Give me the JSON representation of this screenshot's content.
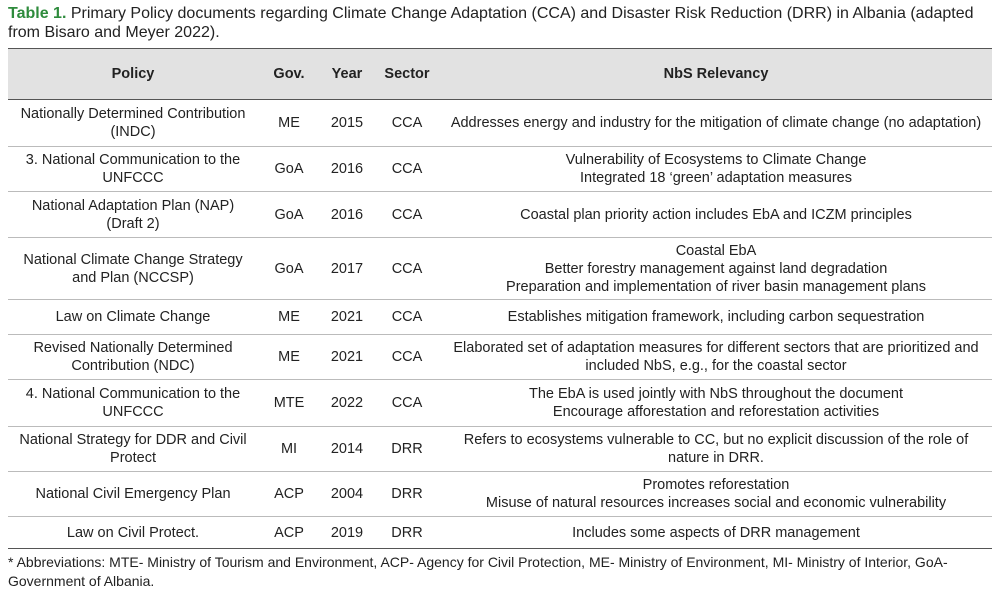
{
  "caption": {
    "label": "Table 1.",
    "text": "Primary Policy documents regarding Climate Change Adaptation (CCA) and Disaster Risk Reduction (DRR) in Albania (adapted from Bisaro and Meyer 2022)."
  },
  "table": {
    "headers": [
      "Policy",
      "Gov.",
      "Year",
      "Sector",
      "NbS Relevancy"
    ],
    "rows": [
      [
        "Nationally Determined Contribution (INDC)",
        "ME",
        "2015",
        "CCA",
        [
          "Addresses energy and industry for the mitigation of climate change (no adaptation)"
        ]
      ],
      [
        "3. National Communication to the UNFCCC",
        "GoA",
        "2016",
        "CCA",
        [
          "Vulnerability of Ecosystems to Climate Change",
          "Integrated 18 ‘green’ adaptation measures"
        ]
      ],
      [
        "National Adaptation Plan (NAP) (Draft 2)",
        "GoA",
        "2016",
        "CCA",
        [
          "Coastal plan priority action includes EbA and ICZM principles"
        ]
      ],
      [
        "National Climate Change Strategy and Plan (NCCSP)",
        "GoA",
        "2017",
        "CCA",
        [
          "Coastal EbA",
          "Better forestry management against land degradation",
          "Preparation and implementation of river basin management plans"
        ]
      ],
      [
        "Law on Climate Change",
        "ME",
        "2021",
        "CCA",
        [
          "Establishes mitigation framework, including carbon sequestration"
        ]
      ],
      [
        "Revised Nationally Determined Contribution (NDC)",
        "ME",
        "2021",
        "CCA",
        [
          "Elaborated set of adaptation measures for different sectors that are prioritized and included NbS, e.g., for the coastal sector"
        ]
      ],
      [
        "4. National Communication to the UNFCCC",
        "MTE",
        "2022",
        "CCA",
        [
          "The EbA is used jointly with NbS throughout the document",
          "Encourage afforestation and reforestation activities"
        ]
      ],
      [
        "National Strategy for DDR and Civil Protect",
        "MI",
        "2014",
        "DRR",
        [
          "Refers to ecosystems vulnerable to CC, but no explicit discussion of the role of nature in DRR."
        ]
      ],
      [
        "National Civil Emergency Plan",
        "ACP",
        "2004",
        "DRR",
        [
          "Promotes reforestation",
          "Misuse of natural resources increases social and economic vulnerability"
        ]
      ],
      [
        "Law on Civil Protect.",
        "ACP",
        "2019",
        "DRR",
        [
          "Includes some aspects of DRR management"
        ]
      ]
    ]
  },
  "footnote": "* Abbreviations: MTE- Ministry of Tourism and Environment, ACP- Agency for Civil Protection, ME- Ministry of Environment, MI- Ministry of Interior, GoA- Government of Albania."
}
